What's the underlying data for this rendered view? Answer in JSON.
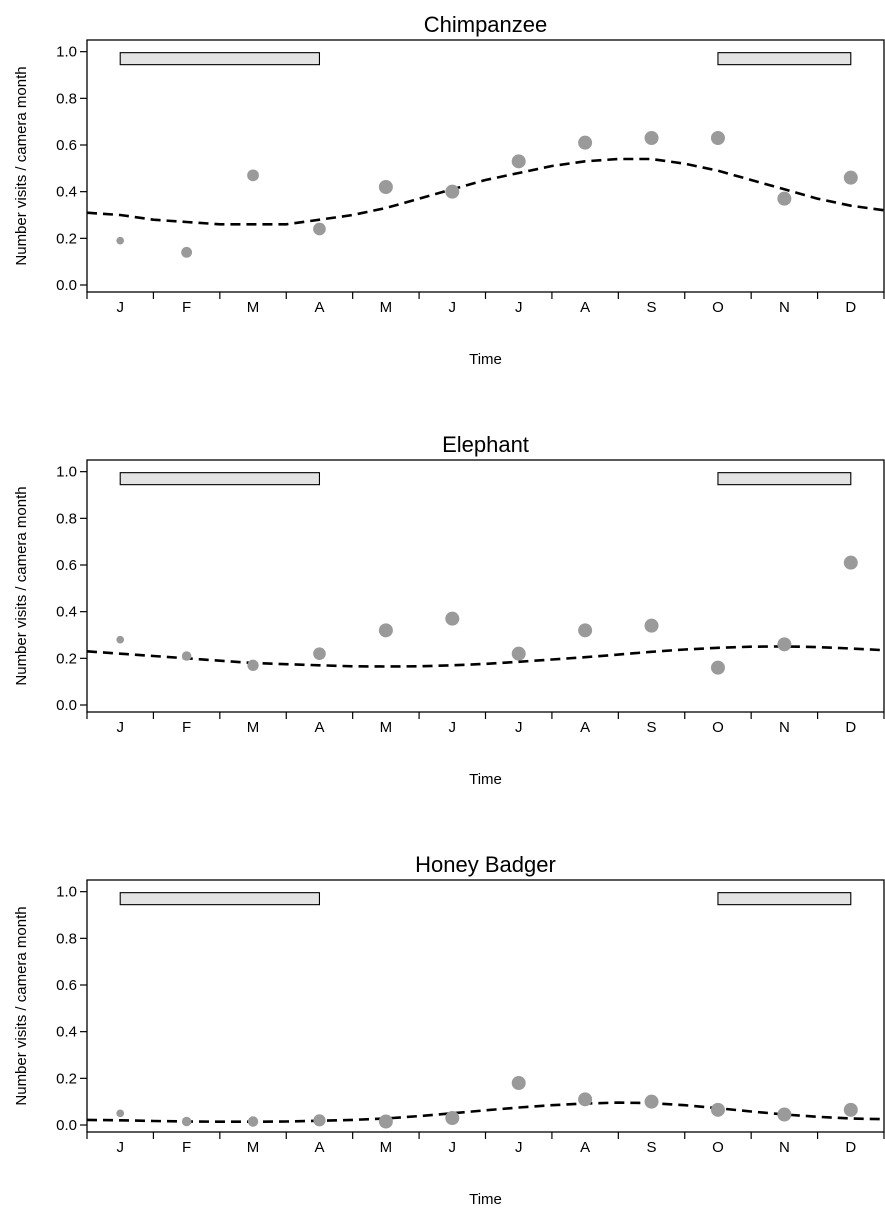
{
  "chart_data": [
    {
      "type": "scatter",
      "title": "Chimpanzee",
      "xlabel": "Time",
      "ylabel": "Number visits / camera month",
      "categories": [
        "J",
        "F",
        "M",
        "A",
        "M",
        "J",
        "J",
        "A",
        "S",
        "O",
        "N",
        "D"
      ],
      "yticks": [
        "0.0",
        "0.2",
        "0.4",
        "0.6",
        "0.8",
        "1.0"
      ],
      "ylim": [
        -0.03,
        1.05
      ],
      "grid": false,
      "points": [
        {
          "x": 1,
          "y": 0.19,
          "size": 0.3
        },
        {
          "x": 2,
          "y": 0.14,
          "size": 0.65
        },
        {
          "x": 3,
          "y": 0.47,
          "size": 0.75
        },
        {
          "x": 4,
          "y": 0.24,
          "size": 0.85
        },
        {
          "x": 5,
          "y": 0.42,
          "size": 1.0
        },
        {
          "x": 6,
          "y": 0.4,
          "size": 1.0
        },
        {
          "x": 7,
          "y": 0.53,
          "size": 1.0
        },
        {
          "x": 8,
          "y": 0.61,
          "size": 1.0
        },
        {
          "x": 9,
          "y": 0.63,
          "size": 1.0
        },
        {
          "x": 10,
          "y": 0.63,
          "size": 1.0
        },
        {
          "x": 11,
          "y": 0.37,
          "size": 1.0
        },
        {
          "x": 12,
          "y": 0.46,
          "size": 1.0
        }
      ],
      "fit_curve": [
        {
          "x": 0.5,
          "y": 0.31
        },
        {
          "x": 1.0,
          "y": 0.3
        },
        {
          "x": 1.5,
          "y": 0.28
        },
        {
          "x": 2.0,
          "y": 0.27
        },
        {
          "x": 2.5,
          "y": 0.26
        },
        {
          "x": 3.0,
          "y": 0.26
        },
        {
          "x": 3.5,
          "y": 0.26
        },
        {
          "x": 4.0,
          "y": 0.28
        },
        {
          "x": 4.5,
          "y": 0.3
        },
        {
          "x": 5.0,
          "y": 0.33
        },
        {
          "x": 5.5,
          "y": 0.37
        },
        {
          "x": 6.0,
          "y": 0.41
        },
        {
          "x": 6.5,
          "y": 0.45
        },
        {
          "x": 7.0,
          "y": 0.48
        },
        {
          "x": 7.5,
          "y": 0.51
        },
        {
          "x": 8.0,
          "y": 0.53
        },
        {
          "x": 8.5,
          "y": 0.54
        },
        {
          "x": 9.0,
          "y": 0.54
        },
        {
          "x": 9.5,
          "y": 0.52
        },
        {
          "x": 10.0,
          "y": 0.49
        },
        {
          "x": 10.5,
          "y": 0.45
        },
        {
          "x": 11.0,
          "y": 0.41
        },
        {
          "x": 11.5,
          "y": 0.37
        },
        {
          "x": 12.0,
          "y": 0.34
        },
        {
          "x": 12.5,
          "y": 0.32
        }
      ],
      "season_bars": [
        {
          "x0": 1,
          "x1": 4,
          "y": 0.97
        },
        {
          "x0": 10,
          "x1": 12,
          "y": 0.97
        }
      ]
    },
    {
      "type": "scatter",
      "title": "Elephant",
      "xlabel": "Time",
      "ylabel": "Number visits / camera month",
      "categories": [
        "J",
        "F",
        "M",
        "A",
        "M",
        "J",
        "J",
        "A",
        "S",
        "O",
        "N",
        "D"
      ],
      "yticks": [
        "0.0",
        "0.2",
        "0.4",
        "0.6",
        "0.8",
        "1.0"
      ],
      "ylim": [
        -0.03,
        1.05
      ],
      "grid": false,
      "points": [
        {
          "x": 1,
          "y": 0.28,
          "size": 0.3
        },
        {
          "x": 2,
          "y": 0.21,
          "size": 0.5
        },
        {
          "x": 3,
          "y": 0.17,
          "size": 0.7
        },
        {
          "x": 4,
          "y": 0.22,
          "size": 0.85
        },
        {
          "x": 5,
          "y": 0.32,
          "size": 1.0
        },
        {
          "x": 6,
          "y": 0.37,
          "size": 1.0
        },
        {
          "x": 7,
          "y": 0.22,
          "size": 1.0
        },
        {
          "x": 8,
          "y": 0.32,
          "size": 1.0
        },
        {
          "x": 9,
          "y": 0.34,
          "size": 1.0
        },
        {
          "x": 10,
          "y": 0.16,
          "size": 1.0
        },
        {
          "x": 11,
          "y": 0.26,
          "size": 1.0
        },
        {
          "x": 12,
          "y": 0.61,
          "size": 1.0
        }
      ],
      "fit_curve": [
        {
          "x": 0.5,
          "y": 0.23
        },
        {
          "x": 1.0,
          "y": 0.22
        },
        {
          "x": 1.5,
          "y": 0.21
        },
        {
          "x": 2.0,
          "y": 0.2
        },
        {
          "x": 2.5,
          "y": 0.19
        },
        {
          "x": 3.0,
          "y": 0.18
        },
        {
          "x": 3.5,
          "y": 0.175
        },
        {
          "x": 4.0,
          "y": 0.17
        },
        {
          "x": 4.5,
          "y": 0.166
        },
        {
          "x": 5.0,
          "y": 0.165
        },
        {
          "x": 5.5,
          "y": 0.166
        },
        {
          "x": 6.0,
          "y": 0.17
        },
        {
          "x": 6.5,
          "y": 0.176
        },
        {
          "x": 7.0,
          "y": 0.185
        },
        {
          "x": 7.5,
          "y": 0.195
        },
        {
          "x": 8.0,
          "y": 0.205
        },
        {
          "x": 8.5,
          "y": 0.216
        },
        {
          "x": 9.0,
          "y": 0.228
        },
        {
          "x": 9.5,
          "y": 0.238
        },
        {
          "x": 10.0,
          "y": 0.245
        },
        {
          "x": 10.5,
          "y": 0.25
        },
        {
          "x": 11.0,
          "y": 0.251
        },
        {
          "x": 11.5,
          "y": 0.248
        },
        {
          "x": 12.0,
          "y": 0.242
        },
        {
          "x": 12.5,
          "y": 0.235
        }
      ],
      "season_bars": [
        {
          "x0": 1,
          "x1": 4,
          "y": 0.97
        },
        {
          "x0": 10,
          "x1": 12,
          "y": 0.97
        }
      ]
    },
    {
      "type": "scatter",
      "title": "Honey Badger",
      "xlabel": "Time",
      "ylabel": "Number visits / camera month",
      "categories": [
        "J",
        "F",
        "M",
        "A",
        "M",
        "J",
        "J",
        "A",
        "S",
        "O",
        "N",
        "D"
      ],
      "yticks": [
        "0.0",
        "0.2",
        "0.4",
        "0.6",
        "0.8",
        "1.0"
      ],
      "ylim": [
        -0.03,
        1.05
      ],
      "grid": false,
      "points": [
        {
          "x": 1,
          "y": 0.05,
          "size": 0.3
        },
        {
          "x": 2,
          "y": 0.015,
          "size": 0.5
        },
        {
          "x": 3,
          "y": 0.015,
          "size": 0.6
        },
        {
          "x": 4,
          "y": 0.02,
          "size": 0.8
        },
        {
          "x": 5,
          "y": 0.015,
          "size": 1.0
        },
        {
          "x": 6,
          "y": 0.03,
          "size": 1.0
        },
        {
          "x": 7,
          "y": 0.18,
          "size": 1.0
        },
        {
          "x": 8,
          "y": 0.11,
          "size": 1.0
        },
        {
          "x": 9,
          "y": 0.1,
          "size": 1.0
        },
        {
          "x": 10,
          "y": 0.065,
          "size": 1.0
        },
        {
          "x": 11,
          "y": 0.045,
          "size": 1.0
        },
        {
          "x": 12,
          "y": 0.065,
          "size": 1.0
        }
      ],
      "fit_curve": [
        {
          "x": 0.5,
          "y": 0.022
        },
        {
          "x": 1.0,
          "y": 0.02
        },
        {
          "x": 1.5,
          "y": 0.017
        },
        {
          "x": 2.0,
          "y": 0.015
        },
        {
          "x": 2.5,
          "y": 0.014
        },
        {
          "x": 3.0,
          "y": 0.014
        },
        {
          "x": 3.5,
          "y": 0.015
        },
        {
          "x": 4.0,
          "y": 0.018
        },
        {
          "x": 4.5,
          "y": 0.022
        },
        {
          "x": 5.0,
          "y": 0.028
        },
        {
          "x": 5.5,
          "y": 0.038
        },
        {
          "x": 6.0,
          "y": 0.05
        },
        {
          "x": 6.5,
          "y": 0.063
        },
        {
          "x": 7.0,
          "y": 0.075
        },
        {
          "x": 7.5,
          "y": 0.085
        },
        {
          "x": 8.0,
          "y": 0.092
        },
        {
          "x": 8.5,
          "y": 0.096
        },
        {
          "x": 9.0,
          "y": 0.094
        },
        {
          "x": 9.5,
          "y": 0.085
        },
        {
          "x": 10.0,
          "y": 0.072
        },
        {
          "x": 10.5,
          "y": 0.058
        },
        {
          "x": 11.0,
          "y": 0.045
        },
        {
          "x": 11.5,
          "y": 0.035
        },
        {
          "x": 12.0,
          "y": 0.028
        },
        {
          "x": 12.5,
          "y": 0.025
        }
      ],
      "season_bars": [
        {
          "x0": 1,
          "x1": 4,
          "y": 0.97
        },
        {
          "x0": 10,
          "x1": 12,
          "y": 0.97
        }
      ]
    }
  ],
  "colors": {
    "points": "#9a9a9a",
    "fit_line": "#000000",
    "season_bar_fill": "#e3e3e3",
    "axis": "#000000"
  }
}
